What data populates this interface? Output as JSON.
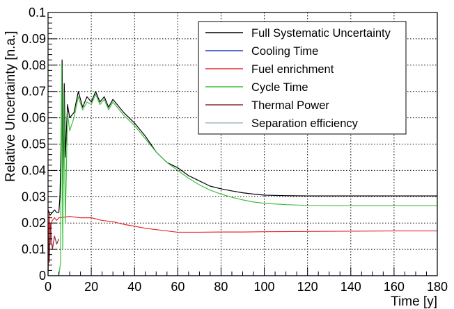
{
  "chart_data": {
    "type": "line",
    "title": "",
    "xlabel": "Time [y]",
    "ylabel": "Relative Uncertainty [n.a.]",
    "xlim": [
      0,
      180
    ],
    "ylim": [
      0,
      0.1
    ],
    "grid": true,
    "legend_position": "top-right",
    "x_ticks": [
      0,
      20,
      40,
      60,
      80,
      100,
      120,
      140,
      160,
      180
    ],
    "y_ticks": [
      0,
      0.01,
      0.02,
      0.03,
      0.04,
      0.05,
      0.06,
      0.07,
      0.08,
      0.09,
      0.1
    ],
    "x_tick_labels": [
      "0",
      "20",
      "40",
      "60",
      "80",
      "100",
      "120",
      "140",
      "160",
      "180"
    ],
    "y_tick_labels": [
      "0",
      "0.01",
      "0.02",
      "0.03",
      "0.04",
      "0.05",
      "0.06",
      "0.07",
      "0.08",
      "0.09",
      "0.1"
    ],
    "series": [
      {
        "name": "Full Systematic Uncertainty",
        "color": "#000000",
        "x": [
          0,
          0.5,
          1,
          2,
          3,
          4,
          5,
          5.5,
          6,
          6.5,
          7,
          7.5,
          8,
          9,
          10,
          12,
          14,
          16,
          18,
          20,
          22,
          24,
          26,
          28,
          30,
          35,
          40,
          45,
          50,
          55,
          60,
          65,
          70,
          75,
          80,
          85,
          90,
          95,
          100,
          110,
          120,
          130,
          140,
          150,
          160,
          170,
          180
        ],
        "y": [
          0.025,
          0.024,
          0.023,
          0.024,
          0.025,
          0.024,
          0.024,
          0.03,
          0.05,
          0.082,
          0.035,
          0.073,
          0.045,
          0.065,
          0.06,
          0.062,
          0.07,
          0.064,
          0.068,
          0.066,
          0.07,
          0.066,
          0.068,
          0.064,
          0.067,
          0.062,
          0.058,
          0.053,
          0.047,
          0.043,
          0.041,
          0.038,
          0.036,
          0.034,
          0.033,
          0.0322,
          0.0315,
          0.031,
          0.0306,
          0.0304,
          0.0303,
          0.0303,
          0.0303,
          0.0303,
          0.0303,
          0.0303,
          0.0303
        ]
      },
      {
        "name": "Cooling Time",
        "color": "#1f3fbf",
        "x": [
          0,
          180
        ],
        "y": [
          0,
          0
        ]
      },
      {
        "name": "Fuel enrichment",
        "color": "#e8282f",
        "x": [
          0,
          0.5,
          1,
          1.5,
          2,
          3,
          4,
          5,
          10,
          15,
          20,
          25,
          30,
          35,
          40,
          45,
          50,
          55,
          60,
          70,
          80,
          90,
          100,
          120,
          140,
          160,
          180
        ],
        "y": [
          0.002,
          0.024,
          0.012,
          0.02,
          0.021,
          0.022,
          0.021,
          0.022,
          0.0225,
          0.022,
          0.022,
          0.021,
          0.0205,
          0.0195,
          0.0188,
          0.018,
          0.0175,
          0.017,
          0.0165,
          0.0165,
          0.0166,
          0.0166,
          0.0167,
          0.0168,
          0.0169,
          0.017,
          0.017
        ]
      },
      {
        "name": "Cycle Time",
        "color": "#3dbd3d",
        "x": [
          0,
          5,
          5.8,
          6.3,
          6.8,
          7.3,
          8,
          9,
          10,
          12,
          14,
          16,
          18,
          20,
          22,
          24,
          26,
          28,
          30,
          35,
          40,
          45,
          50,
          55,
          60,
          65,
          70,
          75,
          80,
          85,
          90,
          95,
          100,
          110,
          120,
          130,
          140,
          150,
          160,
          170,
          180
        ],
        "y": [
          0,
          0,
          0.005,
          0.08,
          0.01,
          0.07,
          0.02,
          0.062,
          0.055,
          0.06,
          0.068,
          0.063,
          0.066,
          0.065,
          0.069,
          0.065,
          0.067,
          0.063,
          0.066,
          0.061,
          0.057,
          0.052,
          0.047,
          0.043,
          0.04,
          0.037,
          0.0345,
          0.0325,
          0.031,
          0.0298,
          0.0288,
          0.028,
          0.0275,
          0.027,
          0.0267,
          0.0266,
          0.0266,
          0.0266,
          0.0266,
          0.0266,
          0.0266
        ]
      },
      {
        "name": "Thermal Power",
        "color": "#8b2a3a",
        "x": [
          0,
          0.3,
          0.6,
          1,
          2,
          3,
          4,
          5
        ],
        "y": [
          0,
          0.015,
          0.005,
          0.02,
          0.01,
          0.015,
          0.012,
          0.014
        ]
      },
      {
        "name": "Separation efficiency",
        "color": "#9fb8c0",
        "x": [
          0,
          180
        ],
        "y": [
          0,
          0
        ]
      }
    ]
  }
}
